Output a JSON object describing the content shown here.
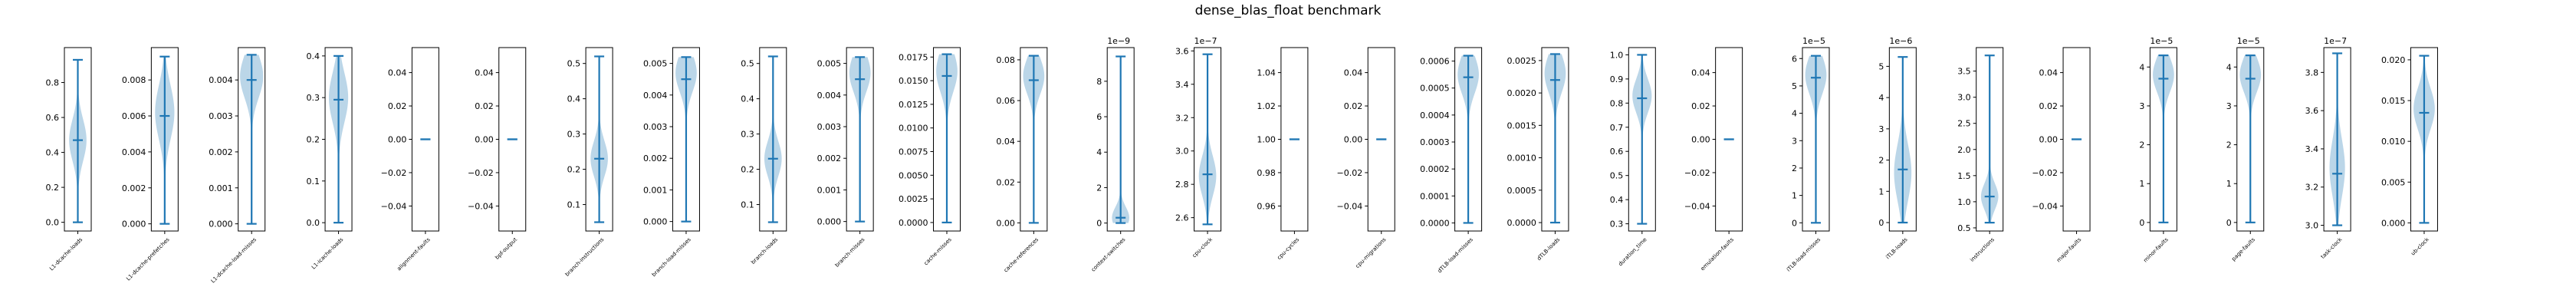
{
  "figure": {
    "title": "dense_blas_float benchmark"
  },
  "colors": {
    "violin_fill": "#1f77b4",
    "violin_line": "#1f77b4",
    "axes": "#000000",
    "background": "#ffffff"
  },
  "chart_data": [
    {
      "type": "violin",
      "name": "L1-dcache-loads",
      "offset": "",
      "ylim": [
        -0.05,
        1.0
      ],
      "yticks": [
        "0.0",
        "0.2",
        "0.4",
        "0.6",
        "0.8"
      ],
      "ytick_values": [
        0,
        0.2,
        0.4,
        0.6,
        0.8
      ],
      "min": 0.0,
      "max": 0.93,
      "median": 0.47,
      "violin_peak": 0.47,
      "violin_spread": 0.12,
      "violin_halfwidth": 0.45
    },
    {
      "type": "violin",
      "name": "L1-dcache-prefetches",
      "offset": "",
      "ylim": [
        -0.0004,
        0.0098
      ],
      "yticks": [
        "0.000",
        "0.002",
        "0.004",
        "0.006",
        "0.008"
      ],
      "ytick_values": [
        0,
        0.002,
        0.004,
        0.006,
        0.008
      ],
      "min": 0.0,
      "max": 0.0093,
      "median": 0.006,
      "violin_peak": 0.0062,
      "violin_spread": 0.0015,
      "violin_halfwidth": 0.5
    },
    {
      "type": "violin",
      "name": "L1-dcache-load-misses",
      "offset": "",
      "ylim": [
        -0.0002,
        0.0049
      ],
      "yticks": [
        "0.000",
        "0.001",
        "0.002",
        "0.003",
        "0.004"
      ],
      "ytick_values": [
        0,
        0.001,
        0.002,
        0.003,
        0.004
      ],
      "min": 0.0,
      "max": 0.0047,
      "median": 0.004,
      "violin_peak": 0.0041,
      "violin_spread": 0.0006,
      "violin_halfwidth": 0.6
    },
    {
      "type": "violin",
      "name": "L1-icache-loads",
      "offset": "",
      "ylim": [
        -0.02,
        0.42
      ],
      "yticks": [
        "0.0",
        "0.1",
        "0.2",
        "0.3",
        "0.4"
      ],
      "ytick_values": [
        0,
        0.1,
        0.2,
        0.3,
        0.4
      ],
      "min": 0.0,
      "max": 0.4,
      "median": 0.295,
      "violin_peak": 0.3,
      "violin_spread": 0.06,
      "violin_halfwidth": 0.5
    },
    {
      "type": "violin",
      "name": "alignment-faults",
      "offset": "",
      "ylim": [
        -0.055,
        0.055
      ],
      "yticks": [
        "−0.04",
        "−0.02",
        "0.00",
        "0.02",
        "0.04"
      ],
      "ytick_values": [
        -0.04,
        -0.02,
        0,
        0.02,
        0.04
      ],
      "min": 0.0,
      "max": 0.0,
      "median": 0.0,
      "violin_peak": 0.0,
      "violin_spread": 0.0,
      "violin_halfwidth": 0.0
    },
    {
      "type": "violin",
      "name": "bpf-output",
      "offset": "",
      "ylim": [
        -0.055,
        0.055
      ],
      "yticks": [
        "−0.04",
        "−0.02",
        "0.00",
        "0.02",
        "0.04"
      ],
      "ytick_values": [
        -0.04,
        -0.02,
        0,
        0.02,
        0.04
      ],
      "min": 0.0,
      "max": 0.0,
      "median": 0.0,
      "violin_peak": 0.0,
      "violin_spread": 0.0,
      "violin_halfwidth": 0.0
    },
    {
      "type": "violin",
      "name": "branch-instructions",
      "offset": "",
      "ylim": [
        0.025,
        0.545
      ],
      "yticks": [
        "0.1",
        "0.2",
        "0.3",
        "0.4",
        "0.5"
      ],
      "ytick_values": [
        0.1,
        0.2,
        0.3,
        0.4,
        0.5
      ],
      "min": 0.05,
      "max": 0.52,
      "median": 0.23,
      "violin_peak": 0.23,
      "violin_spread": 0.05,
      "violin_halfwidth": 0.45
    },
    {
      "type": "violin",
      "name": "branch-load-misses",
      "offset": "",
      "ylim": [
        -0.0003,
        0.0055
      ],
      "yticks": [
        "0.000",
        "0.001",
        "0.002",
        "0.003",
        "0.004",
        "0.005"
      ],
      "ytick_values": [
        0,
        0.001,
        0.002,
        0.003,
        0.004,
        0.005
      ],
      "min": 0.0,
      "max": 0.0052,
      "median": 0.0045,
      "violin_peak": 0.0047,
      "violin_spread": 0.0006,
      "violin_halfwidth": 0.55
    },
    {
      "type": "violin",
      "name": "branch-loads",
      "offset": "",
      "ylim": [
        0.025,
        0.545
      ],
      "yticks": [
        "0.1",
        "0.2",
        "0.3",
        "0.4",
        "0.5"
      ],
      "ytick_values": [
        0.1,
        0.2,
        0.3,
        0.4,
        0.5
      ],
      "min": 0.05,
      "max": 0.52,
      "median": 0.23,
      "violin_peak": 0.23,
      "violin_spread": 0.05,
      "violin_halfwidth": 0.45
    },
    {
      "type": "violin",
      "name": "branch-misses",
      "offset": "",
      "ylim": [
        -0.0003,
        0.0055
      ],
      "yticks": [
        "0.000",
        "0.001",
        "0.002",
        "0.003",
        "0.004",
        "0.005"
      ],
      "ytick_values": [
        0,
        0.001,
        0.002,
        0.003,
        0.004,
        0.005
      ],
      "min": 0.0,
      "max": 0.0052,
      "median": 0.0045,
      "violin_peak": 0.0047,
      "violin_spread": 0.0006,
      "violin_halfwidth": 0.55
    },
    {
      "type": "violin",
      "name": "cache-misses",
      "offset": "",
      "ylim": [
        -0.0009,
        0.0185
      ],
      "yticks": [
        "0.0000",
        "0.0025",
        "0.0050",
        "0.0075",
        "0.0100",
        "0.0125",
        "0.0150",
        "0.0175"
      ],
      "ytick_values": [
        0,
        0.0025,
        0.005,
        0.0075,
        0.01,
        0.0125,
        0.015,
        0.0175
      ],
      "min": 0.0,
      "max": 0.0178,
      "median": 0.0155,
      "violin_peak": 0.016,
      "violin_spread": 0.0022,
      "violin_halfwidth": 0.55
    },
    {
      "type": "violin",
      "name": "cache-references",
      "offset": "",
      "ylim": [
        -0.004,
        0.086
      ],
      "yticks": [
        "0.00",
        "0.02",
        "0.04",
        "0.06",
        "0.08"
      ],
      "ytick_values": [
        0,
        0.02,
        0.04,
        0.06,
        0.08
      ],
      "min": 0.0,
      "max": 0.082,
      "median": 0.07,
      "violin_peak": 0.072,
      "violin_spread": 0.009,
      "violin_halfwidth": 0.55
    },
    {
      "type": "violin",
      "name": "context-switches",
      "offset": "1e−9",
      "ylim": [
        -0.45,
        9.9
      ],
      "yticks": [
        "0",
        "2",
        "4",
        "6",
        "8"
      ],
      "ytick_values": [
        0,
        2,
        4,
        6,
        8
      ],
      "min": 0.0,
      "max": 9.4,
      "median": 0.3,
      "violin_peak": 0.3,
      "violin_spread": 0.6,
      "violin_halfwidth": 0.45
    },
    {
      "type": "violin",
      "name": "cpu-clock",
      "offset": "1e−7",
      "ylim": [
        2.52,
        3.62
      ],
      "yticks": [
        "2.6",
        "2.8",
        "3.0",
        "3.2",
        "3.4",
        "3.6"
      ],
      "ytick_values": [
        2.6,
        2.8,
        3.0,
        3.2,
        3.4,
        3.6
      ],
      "min": 2.56,
      "max": 3.58,
      "median": 2.86,
      "violin_peak": 2.85,
      "violin_spread": 0.12,
      "violin_halfwidth": 0.45
    },
    {
      "type": "violin",
      "name": "cpu-cycles",
      "offset": "",
      "ylim": [
        0.945,
        1.055
      ],
      "yticks": [
        "0.96",
        "0.98",
        "1.00",
        "1.02",
        "1.04"
      ],
      "ytick_values": [
        0.96,
        0.98,
        1.0,
        1.02,
        1.04
      ],
      "min": 1.0,
      "max": 1.0,
      "median": 1.0,
      "violin_peak": 1.0,
      "violin_spread": 0.0,
      "violin_halfwidth": 0.0
    },
    {
      "type": "violin",
      "name": "cpu-migrations",
      "offset": "",
      "ylim": [
        -0.055,
        0.055
      ],
      "yticks": [
        "−0.04",
        "−0.02",
        "0.00",
        "0.02",
        "0.04"
      ],
      "ytick_values": [
        -0.04,
        -0.02,
        0,
        0.02,
        0.04
      ],
      "min": 0.0,
      "max": 0.0,
      "median": 0.0,
      "violin_peak": 0.0,
      "violin_spread": 0.0,
      "violin_halfwidth": 0.0
    },
    {
      "type": "violin",
      "name": "dTLB-load-misses",
      "offset": "",
      "ylim": [
        -3e-05,
        0.00065
      ],
      "yticks": [
        "0.0000",
        "0.0001",
        "0.0002",
        "0.0003",
        "0.0004",
        "0.0005",
        "0.0006"
      ],
      "ytick_values": [
        0,
        0.0001,
        0.0002,
        0.0003,
        0.0004,
        0.0005,
        0.0006
      ],
      "min": 0.0,
      "max": 0.00062,
      "median": 0.00054,
      "violin_peak": 0.00055,
      "violin_spread": 7e-05,
      "violin_halfwidth": 0.55
    },
    {
      "type": "violin",
      "name": "dTLB-loads",
      "offset": "",
      "ylim": [
        -0.00013,
        0.0027
      ],
      "yticks": [
        "0.0000",
        "0.0005",
        "0.0010",
        "0.0015",
        "0.0020",
        "0.0025"
      ],
      "ytick_values": [
        0,
        0.0005,
        0.001,
        0.0015,
        0.002,
        0.0025
      ],
      "min": 0.0,
      "max": 0.0026,
      "median": 0.0022,
      "violin_peak": 0.0023,
      "violin_spread": 0.0003,
      "violin_halfwidth": 0.55
    },
    {
      "type": "violin",
      "name": "duration_time",
      "offset": "",
      "ylim": [
        0.27,
        1.03
      ],
      "yticks": [
        "0.3",
        "0.4",
        "0.5",
        "0.6",
        "0.7",
        "0.8",
        "0.9",
        "1.0"
      ],
      "ytick_values": [
        0.3,
        0.4,
        0.5,
        0.6,
        0.7,
        0.8,
        0.9,
        1.0
      ],
      "min": 0.3,
      "max": 1.0,
      "median": 0.82,
      "violin_peak": 0.83,
      "violin_spread": 0.07,
      "violin_halfwidth": 0.5
    },
    {
      "type": "violin",
      "name": "emulation-faults",
      "offset": "",
      "ylim": [
        -0.055,
        0.055
      ],
      "yticks": [
        "−0.04",
        "−0.02",
        "0.00",
        "0.02",
        "0.04"
      ],
      "ytick_values": [
        -0.04,
        -0.02,
        0,
        0.02,
        0.04
      ],
      "min": 0.0,
      "max": 0.0,
      "median": 0.0,
      "violin_peak": 0.0,
      "violin_spread": 0.0,
      "violin_halfwidth": 0.0
    },
    {
      "type": "violin",
      "name": "iTLB-load-misses",
      "offset": "1e−5",
      "ylim": [
        -0.3,
        6.4
      ],
      "yticks": [
        "0",
        "1",
        "2",
        "3",
        "4",
        "5",
        "6"
      ],
      "ytick_values": [
        0,
        1,
        2,
        3,
        4,
        5,
        6
      ],
      "min": 0.0,
      "max": 6.1,
      "median": 5.3,
      "violin_peak": 5.4,
      "violin_spread": 0.7,
      "violin_halfwidth": 0.55
    },
    {
      "type": "violin",
      "name": "iTLB-loads",
      "offset": "1e−6",
      "ylim": [
        -0.27,
        5.6
      ],
      "yticks": [
        "0",
        "1",
        "2",
        "3",
        "4",
        "5"
      ],
      "ytick_values": [
        0,
        1,
        2,
        3,
        4,
        5
      ],
      "min": 0.0,
      "max": 5.3,
      "median": 1.7,
      "violin_peak": 1.6,
      "violin_spread": 0.9,
      "violin_halfwidth": 0.45
    },
    {
      "type": "violin",
      "name": "instructions",
      "offset": "",
      "ylim": [
        0.44,
        3.95
      ],
      "yticks": [
        "0.5",
        "1.0",
        "1.5",
        "2.0",
        "2.5",
        "3.0",
        "3.5"
      ],
      "ytick_values": [
        0.5,
        1.0,
        1.5,
        2.0,
        2.5,
        3.0,
        3.5
      ],
      "min": 0.6,
      "max": 3.8,
      "median": 1.1,
      "violin_peak": 1.1,
      "violin_spread": 0.25,
      "violin_halfwidth": 0.45
    },
    {
      "type": "violin",
      "name": "major-faults",
      "offset": "",
      "ylim": [
        -0.055,
        0.055
      ],
      "yticks": [
        "−0.04",
        "−0.02",
        "0.00",
        "0.02",
        "0.04"
      ],
      "ytick_values": [
        -0.04,
        -0.02,
        0,
        0.02,
        0.04
      ],
      "min": 0.0,
      "max": 0.0,
      "median": 0.0,
      "violin_peak": 0.0,
      "violin_spread": 0.0,
      "violin_halfwidth": 0.0
    },
    {
      "type": "violin",
      "name": "minor-faults",
      "offset": "1e−5",
      "ylim": [
        -0.22,
        4.5
      ],
      "yticks": [
        "0",
        "1",
        "2",
        "3",
        "4"
      ],
      "ytick_values": [
        0,
        1,
        2,
        3,
        4
      ],
      "min": 0.0,
      "max": 4.3,
      "median": 3.7,
      "violin_peak": 3.8,
      "violin_spread": 0.45,
      "violin_halfwidth": 0.55
    },
    {
      "type": "violin",
      "name": "page-faults",
      "offset": "1e−5",
      "ylim": [
        -0.22,
        4.5
      ],
      "yticks": [
        "0",
        "1",
        "2",
        "3",
        "4"
      ],
      "ytick_values": [
        0,
        1,
        2,
        3,
        4
      ],
      "min": 0.0,
      "max": 4.3,
      "median": 3.7,
      "violin_peak": 3.8,
      "violin_spread": 0.45,
      "violin_halfwidth": 0.55
    },
    {
      "type": "violin",
      "name": "task-clock",
      "offset": "1e−7",
      "ylim": [
        2.97,
        3.93
      ],
      "yticks": [
        "3.0",
        "3.2",
        "3.4",
        "3.6",
        "3.8"
      ],
      "ytick_values": [
        3.0,
        3.2,
        3.4,
        3.6,
        3.8
      ],
      "min": 3.0,
      "max": 3.9,
      "median": 3.27,
      "violin_peak": 3.3,
      "violin_spread": 0.15,
      "violin_halfwidth": 0.4
    },
    {
      "type": "violin",
      "name": "ub-clock",
      "offset": "",
      "ylim": [
        -0.001,
        0.0215
      ],
      "yticks": [
        "0.000",
        "0.005",
        "0.010",
        "0.015",
        "0.020"
      ],
      "ytick_values": [
        0,
        0.005,
        0.01,
        0.015,
        0.02
      ],
      "min": 0.0,
      "max": 0.0205,
      "median": 0.0135,
      "violin_peak": 0.014,
      "violin_spread": 0.0025,
      "violin_halfwidth": 0.55
    }
  ]
}
